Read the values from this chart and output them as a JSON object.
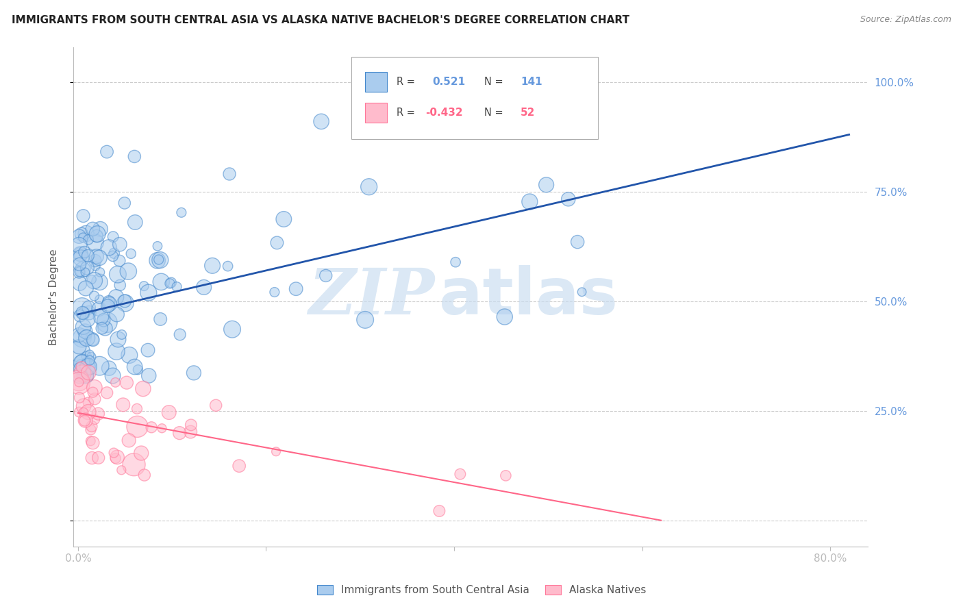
{
  "title": "IMMIGRANTS FROM SOUTH CENTRAL ASIA VS ALASKA NATIVE BACHELOR'S DEGREE CORRELATION CHART",
  "source": "Source: ZipAtlas.com",
  "ylabel": "Bachelor's Degree",
  "y_ticks": [
    0.0,
    0.25,
    0.5,
    0.75,
    1.0
  ],
  "y_tick_labels": [
    "",
    "25.0%",
    "50.0%",
    "75.0%",
    "100.0%"
  ],
  "xlim": [
    -0.005,
    0.84
  ],
  "ylim": [
    -0.06,
    1.08
  ],
  "blue_R": 0.521,
  "blue_N": 141,
  "pink_R": -0.432,
  "pink_N": 52,
  "blue_fill_color": "#AACCEE",
  "pink_fill_color": "#FFBBCC",
  "blue_edge_color": "#4488CC",
  "pink_edge_color": "#FF7799",
  "blue_line_color": "#2255AA",
  "pink_line_color": "#FF6688",
  "legend_blue_label": "Immigrants from South Central Asia",
  "legend_pink_label": "Alaska Natives",
  "watermark_zip": "ZIP",
  "watermark_atlas": "atlas",
  "background_color": "#ffffff",
  "grid_color": "#cccccc",
  "title_fontsize": 11,
  "axis_tick_color": "#6699DD",
  "blue_line_x0": 0.0,
  "blue_line_x1": 0.82,
  "blue_line_y0": 0.47,
  "blue_line_y1": 0.88,
  "pink_line_x0": 0.0,
  "pink_line_x1": 0.62,
  "pink_line_y0": 0.245,
  "pink_line_y1": 0.0,
  "scatter_alpha": 0.55,
  "scatter_linewidth": 1.0
}
